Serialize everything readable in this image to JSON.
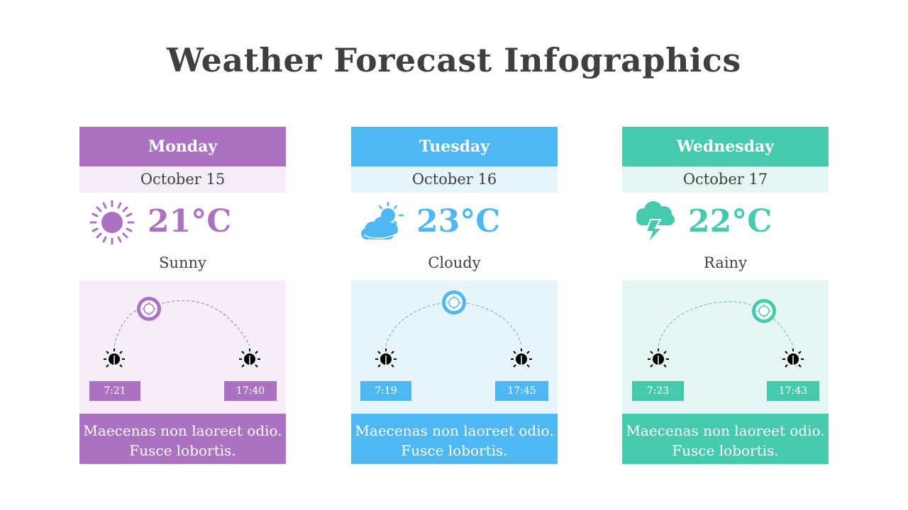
{
  "title": "Weather Forecast Infographics",
  "days": [
    {
      "day": "Monday",
      "date": "October 15",
      "temp": "21°C",
      "condition": "Sunny",
      "sunrise": "7:21",
      "sunset": "17:40",
      "description": "Maecenas non laoreet odio. Fusce lobortis.",
      "icon": "sun-icon",
      "color": "#ab72c2",
      "light": "#f5edf8"
    },
    {
      "day": "Tuesday",
      "date": "October 16",
      "temp": "23°C",
      "condition": "Cloudy",
      "sunrise": "7:19",
      "sunset": "17:45",
      "description": "Maecenas non laoreet odio. Fusce lobortis.",
      "icon": "partly-cloudy-icon",
      "color": "#4fb8f2",
      "light": "#e7f4fb"
    },
    {
      "day": "Wednesday",
      "date": "October 17",
      "temp": "22°C",
      "condition": "Rainy",
      "sunrise": "7:23",
      "sunset": "17:43",
      "description": "Maecenas non laoreet odio. Fusce lobortis.",
      "icon": "thunderstorm-icon",
      "color": "#47c9ae",
      "light": "#e6f6f2"
    }
  ]
}
